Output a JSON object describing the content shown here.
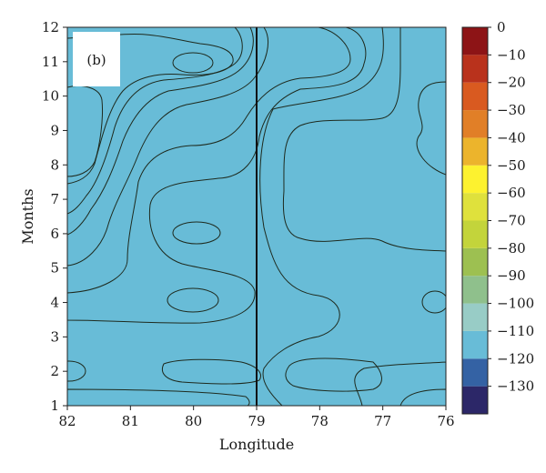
{
  "chart_data": {
    "type": "heatmap",
    "subtype": "filled-contour",
    "panel_label": "(b)",
    "xlabel": "Longitude",
    "ylabel": "Months",
    "xlim": [
      82,
      76
    ],
    "ylim": [
      1,
      12
    ],
    "x_ticks": [
      "82",
      "81",
      "80",
      "79",
      "78",
      "77",
      "76"
    ],
    "y_ticks": [
      "1",
      "2",
      "3",
      "4",
      "5",
      "6",
      "7",
      "8",
      "9",
      "10",
      "11",
      "12"
    ],
    "reference_line_x": 79,
    "colorbar": {
      "tick_labels": [
        "0",
        "−10",
        "−20",
        "−30",
        "−40",
        "−50",
        "−60",
        "−70",
        "−80",
        "−90",
        "−100",
        "−110",
        "−120",
        "−130"
      ],
      "levels": [
        {
          "low": -140,
          "high": -130,
          "color": "#2c2768"
        },
        {
          "low": -130,
          "high": -120,
          "color": "#3462a4"
        },
        {
          "low": -120,
          "high": -110,
          "color": "#68bcd7"
        },
        {
          "low": -110,
          "high": -100,
          "color": "#98ccc6"
        },
        {
          "low": -100,
          "high": -90,
          "color": "#8fc08c"
        },
        {
          "low": -90,
          "high": -80,
          "color": "#9dc051"
        },
        {
          "low": -80,
          "high": -70,
          "color": "#c3d43b"
        },
        {
          "low": -70,
          "high": -60,
          "color": "#dfe13c"
        },
        {
          "low": -60,
          "high": -50,
          "color": "#fdf22f"
        },
        {
          "low": -50,
          "high": -40,
          "color": "#ecb42c"
        },
        {
          "low": -40,
          "high": -30,
          "color": "#e17f27"
        },
        {
          "low": -30,
          "high": -20,
          "color": "#d95a20"
        },
        {
          "low": -20,
          "high": -10,
          "color": "#b9321c"
        },
        {
          "low": -10,
          "high": 0,
          "color": "#8d1416"
        }
      ]
    }
  }
}
